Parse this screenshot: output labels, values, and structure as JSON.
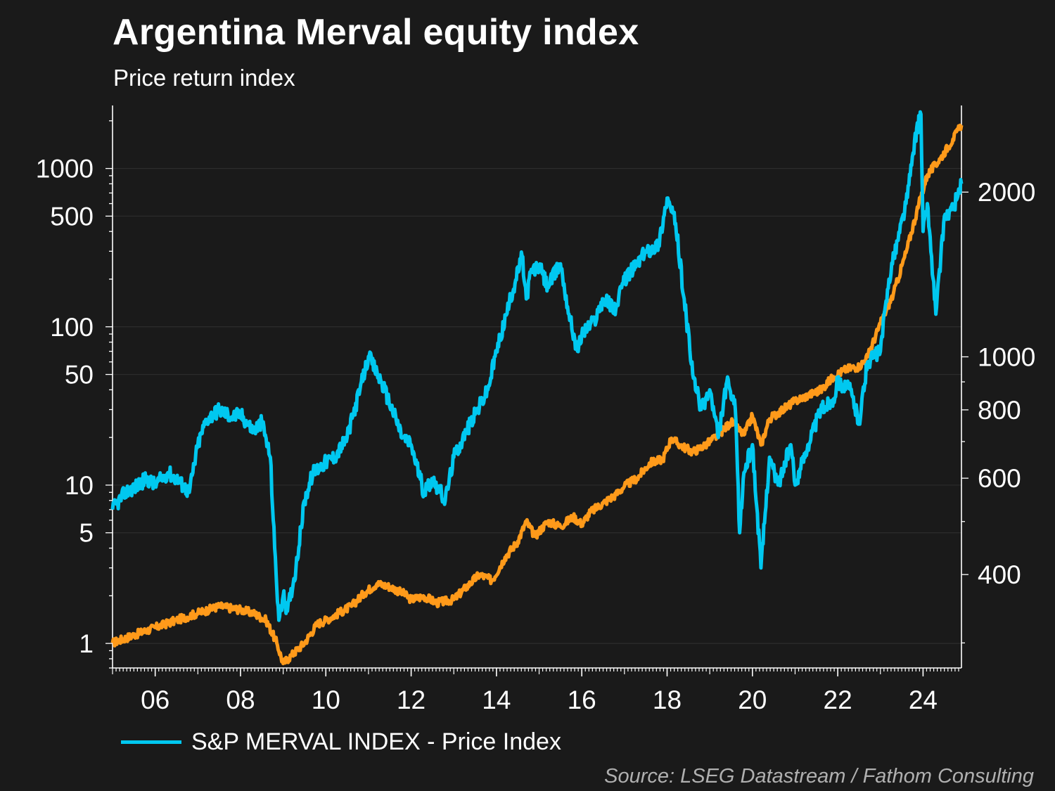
{
  "title": "Argentina Merval equity index",
  "subtitle": "Price return index",
  "legend_label": "S&P MERVAL INDEX - Price Index",
  "source": "Source: LSEG Datastream / Fathom Consulting",
  "colors": {
    "background": "#1a1a1a",
    "merval": "#00c8f0",
    "orange_series": "#ff9a1a",
    "axis": "#ffffff",
    "grid": "#2c2c2c"
  },
  "chart_data": {
    "type": "line",
    "x_axis": {
      "ticks": [
        "06",
        "08",
        "10",
        "12",
        "14",
        "16",
        "18",
        "20",
        "22",
        "24"
      ],
      "range": [
        2005.0,
        2024.9
      ]
    },
    "y_left": {
      "scale": "log",
      "range": [
        0.7,
        2500
      ],
      "ticks": [
        "1",
        "5",
        "10",
        "50",
        "100",
        "500",
        "1000"
      ]
    },
    "y_right": {
      "scale": "log",
      "range": [
        270,
        2880
      ],
      "ticks": [
        "400",
        "600",
        "800",
        "1000",
        "2000"
      ]
    },
    "grid": "horizontal",
    "series": [
      {
        "name": "S&P MERVAL INDEX - Price Index",
        "axis": "left",
        "x": [
          2005.0,
          2005.3,
          2005.6,
          2005.8,
          2006.0,
          2006.3,
          2006.5,
          2006.8,
          2007.0,
          2007.2,
          2007.5,
          2007.8,
          2008.0,
          2008.3,
          2008.5,
          2008.7,
          2008.8,
          2008.9,
          2009.0,
          2009.1,
          2009.3,
          2009.5,
          2009.7,
          2010.0,
          2010.2,
          2010.5,
          2010.8,
          2011.0,
          2011.3,
          2011.6,
          2011.8,
          2012.0,
          2012.3,
          2012.5,
          2012.8,
          2013.0,
          2013.3,
          2013.5,
          2013.8,
          2014.0,
          2014.3,
          2014.6,
          2014.7,
          2014.8,
          2015.0,
          2015.2,
          2015.5,
          2015.7,
          2015.9,
          2016.0,
          2016.3,
          2016.5,
          2016.8,
          2017.0,
          2017.3,
          2017.5,
          2017.8,
          2018.0,
          2018.2,
          2018.4,
          2018.6,
          2018.8,
          2019.0,
          2019.2,
          2019.4,
          2019.6,
          2019.7,
          2019.8,
          2020.0,
          2020.2,
          2020.4,
          2020.6,
          2020.9,
          2021.0,
          2021.3,
          2021.6,
          2021.9,
          2022.0,
          2022.3,
          2022.5,
          2022.7,
          2023.0,
          2023.2,
          2023.4,
          2023.6,
          2023.7,
          2023.8,
          2023.95,
          2024.0,
          2024.1,
          2024.3,
          2024.5,
          2024.7,
          2024.9
        ],
        "y": [
          7,
          9,
          10,
          11,
          10,
          12,
          11,
          9,
          18,
          26,
          30,
          27,
          28,
          22,
          25,
          15,
          4,
          1.4,
          2,
          1.6,
          3,
          8,
          12,
          14,
          15,
          20,
          40,
          65,
          45,
          28,
          20,
          18,
          9,
          11,
          8,
          15,
          22,
          28,
          40,
          70,
          140,
          280,
          150,
          220,
          240,
          180,
          250,
          120,
          70,
          90,
          110,
          150,
          130,
          200,
          250,
          300,
          330,
          650,
          450,
          150,
          50,
          30,
          40,
          20,
          45,
          30,
          5,
          12,
          18,
          3,
          15,
          10,
          18,
          10,
          18,
          30,
          35,
          45,
          40,
          25,
          60,
          70,
          200,
          350,
          600,
          900,
          1500,
          2200,
          400,
          600,
          120,
          500,
          550,
          800
        ]
      },
      {
        "name": "",
        "axis": "right",
        "x": [
          2005.0,
          2005.5,
          2006.0,
          2006.5,
          2007.0,
          2007.5,
          2008.0,
          2008.3,
          2008.6,
          2008.85,
          2009.0,
          2009.2,
          2009.5,
          2009.8,
          2010.0,
          2010.3,
          2010.6,
          2010.9,
          2011.2,
          2011.5,
          2011.8,
          2012.0,
          2012.3,
          2012.6,
          2013.0,
          2013.3,
          2013.6,
          2013.9,
          2014.2,
          2014.5,
          2014.7,
          2014.9,
          2015.2,
          2015.5,
          2015.8,
          2016.0,
          2016.2,
          2016.5,
          2016.8,
          2017.0,
          2017.3,
          2017.6,
          2017.9,
          2018.1,
          2018.3,
          2018.6,
          2018.9,
          2019.2,
          2019.5,
          2019.8,
          2020.0,
          2020.2,
          2020.4,
          2020.7,
          2021.0,
          2021.3,
          2021.6,
          2021.9,
          2022.2,
          2022.5,
          2022.7,
          2023.0,
          2023.3,
          2023.6,
          2023.9,
          2024.1,
          2024.4,
          2024.7,
          2024.9
        ],
        "y": [
          300,
          310,
          320,
          330,
          340,
          350,
          345,
          340,
          330,
          300,
          275,
          285,
          300,
          325,
          330,
          340,
          350,
          370,
          385,
          380,
          370,
          360,
          365,
          355,
          360,
          380,
          400,
          390,
          430,
          460,
          500,
          470,
          500,
          490,
          510,
          495,
          520,
          540,
          560,
          580,
          600,
          640,
          650,
          710,
          690,
          670,
          690,
          720,
          760,
          720,
          780,
          690,
          770,
          800,
          830,
          850,
          870,
          920,
          950,
          960,
          1000,
          1150,
          1300,
          1550,
          1900,
          2150,
          2300,
          2500,
          2650
        ]
      }
    ]
  }
}
